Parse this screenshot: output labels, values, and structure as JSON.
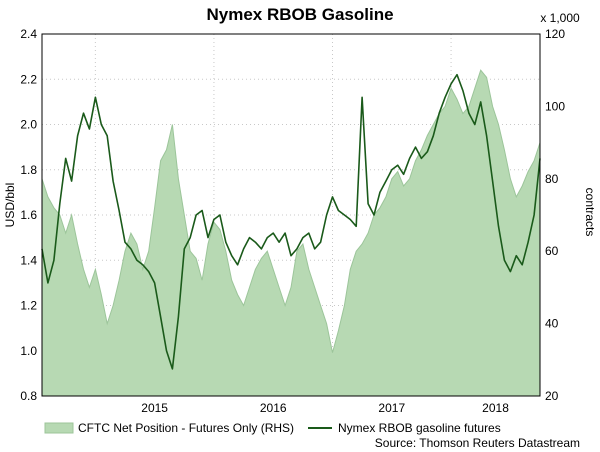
{
  "chart_data": {
    "type": "line",
    "title": "Nymex RBOB Gasoline",
    "ylabel": "USD/bbl",
    "y2label": "contracts",
    "y2_multiplier_label": "x 1,000",
    "source": "Source: Thomson Reuters Datastream",
    "ylim": [
      0.8,
      2.4
    ],
    "y2lim": [
      20,
      120
    ],
    "yticks": [
      "0.8",
      "1.0",
      "1.2",
      "1.4",
      "1.6",
      "1.8",
      "2.0",
      "2.2",
      "2.4"
    ],
    "y2ticks": [
      "20",
      "40",
      "60",
      "80",
      "100",
      "120"
    ],
    "xlim": [
      2014.55,
      2018.75
    ],
    "xticks": [
      "2015",
      "2016",
      "2017",
      "2018"
    ],
    "grid": true,
    "legend_position": "bottom",
    "colors": {
      "area_fill": "#b7d9b3",
      "area_line": "#9cc59a",
      "line": "#1a5a1a",
      "grid": "#c8c8c8"
    },
    "series": [
      {
        "name": "CFTC Net Position - Futures Only (RHS)",
        "type": "area",
        "axis": "right",
        "x": [
          2014.55,
          2014.6,
          2014.65,
          2014.7,
          2014.75,
          2014.8,
          2014.85,
          2014.9,
          2014.95,
          2015.0,
          2015.05,
          2015.1,
          2015.15,
          2015.2,
          2015.25,
          2015.3,
          2015.35,
          2015.4,
          2015.45,
          2015.5,
          2015.55,
          2015.6,
          2015.65,
          2015.7,
          2015.75,
          2015.8,
          2015.85,
          2015.9,
          2015.95,
          2016.0,
          2016.05,
          2016.1,
          2016.15,
          2016.2,
          2016.25,
          2016.3,
          2016.35,
          2016.4,
          2016.45,
          2016.5,
          2016.55,
          2016.6,
          2016.65,
          2016.7,
          2016.75,
          2016.8,
          2016.85,
          2016.9,
          2016.95,
          2017.0,
          2017.05,
          2017.1,
          2017.15,
          2017.2,
          2017.25,
          2017.3,
          2017.35,
          2017.4,
          2017.45,
          2017.5,
          2017.55,
          2017.6,
          2017.65,
          2017.7,
          2017.75,
          2017.8,
          2017.85,
          2017.9,
          2017.95,
          2018.0,
          2018.05,
          2018.1,
          2018.15,
          2018.2,
          2018.25,
          2018.3,
          2018.35,
          2018.4,
          2018.45,
          2018.5,
          2018.55,
          2018.6,
          2018.65,
          2018.7,
          2018.75
        ],
        "values": [
          80,
          75,
          72,
          70,
          65,
          70,
          62,
          55,
          50,
          55,
          48,
          40,
          45,
          52,
          60,
          65,
          62,
          55,
          60,
          72,
          85,
          88,
          95,
          80,
          70,
          60,
          58,
          52,
          62,
          68,
          66,
          60,
          52,
          48,
          45,
          50,
          55,
          58,
          60,
          55,
          50,
          45,
          50,
          60,
          62,
          55,
          50,
          45,
          40,
          32,
          38,
          45,
          55,
          60,
          62,
          65,
          70,
          72,
          75,
          80,
          82,
          78,
          80,
          85,
          88,
          92,
          95,
          98,
          100,
          105,
          102,
          98,
          100,
          105,
          110,
          108,
          100,
          95,
          88,
          80,
          75,
          78,
          82,
          85,
          90
        ]
      },
      {
        "name": "Nymex RBOB gasoline futures",
        "type": "line",
        "axis": "left",
        "x": [
          2014.55,
          2014.6,
          2014.65,
          2014.7,
          2014.75,
          2014.8,
          2014.85,
          2014.9,
          2014.95,
          2015.0,
          2015.05,
          2015.1,
          2015.15,
          2015.2,
          2015.25,
          2015.3,
          2015.35,
          2015.4,
          2015.45,
          2015.5,
          2015.55,
          2015.6,
          2015.65,
          2015.7,
          2015.75,
          2015.8,
          2015.85,
          2015.9,
          2015.95,
          2016.0,
          2016.05,
          2016.1,
          2016.15,
          2016.2,
          2016.25,
          2016.3,
          2016.35,
          2016.4,
          2016.45,
          2016.5,
          2016.55,
          2016.6,
          2016.65,
          2016.7,
          2016.75,
          2016.8,
          2016.85,
          2016.9,
          2016.95,
          2017.0,
          2017.05,
          2017.1,
          2017.15,
          2017.2,
          2017.25,
          2017.3,
          2017.35,
          2017.4,
          2017.45,
          2017.5,
          2017.55,
          2017.6,
          2017.65,
          2017.7,
          2017.75,
          2017.8,
          2017.85,
          2017.9,
          2017.95,
          2018.0,
          2018.05,
          2018.1,
          2018.15,
          2018.2,
          2018.25,
          2018.3,
          2018.35,
          2018.4,
          2018.45,
          2018.5,
          2018.55,
          2018.6,
          2018.65,
          2018.7,
          2018.75
        ],
        "values": [
          1.45,
          1.3,
          1.4,
          1.65,
          1.85,
          1.75,
          1.95,
          2.05,
          1.98,
          2.12,
          2.0,
          1.95,
          1.75,
          1.62,
          1.48,
          1.45,
          1.4,
          1.38,
          1.35,
          1.3,
          1.15,
          1.0,
          0.92,
          1.15,
          1.45,
          1.5,
          1.6,
          1.62,
          1.5,
          1.58,
          1.6,
          1.48,
          1.42,
          1.38,
          1.45,
          1.5,
          1.48,
          1.45,
          1.5,
          1.52,
          1.48,
          1.52,
          1.42,
          1.45,
          1.5,
          1.52,
          1.45,
          1.48,
          1.6,
          1.68,
          1.62,
          1.6,
          1.58,
          1.55,
          2.12,
          1.65,
          1.6,
          1.7,
          1.75,
          1.8,
          1.82,
          1.78,
          1.85,
          1.9,
          1.85,
          1.88,
          1.95,
          2.05,
          2.12,
          2.18,
          2.22,
          2.15,
          2.05,
          2.0,
          2.1,
          1.95,
          1.75,
          1.55,
          1.4,
          1.35,
          1.42,
          1.38,
          1.48,
          1.6,
          1.85
        ]
      }
    ]
  }
}
